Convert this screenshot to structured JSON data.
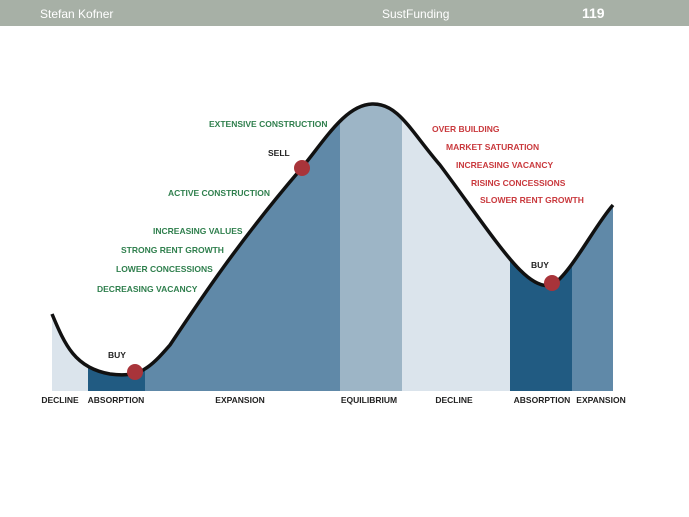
{
  "header": {
    "author": "Stefan Kofner",
    "center": "SustFunding",
    "page_number": "119"
  },
  "colors": {
    "header_bg": "#a7b0a6",
    "phase_light": "#dbe4ec",
    "phase_dark": "#215b82",
    "phase_mid": "#6089a8",
    "phase_equilibrium": "#9db5c6",
    "marker": "#a8343a",
    "green_text": "#2f7f4d",
    "red_text": "#c9393d"
  },
  "diagram": {
    "phases": [
      "DECLINE",
      "ABSORPTION",
      "EXPANSION",
      "EQUILIBRIUM",
      "DECLINE",
      "ABSORPTION",
      "EXPANSION"
    ],
    "markers": {
      "buy_left": "BUY",
      "sell": "SELL",
      "buy_right": "BUY"
    },
    "green_notes": [
      "EXTENSIVE CONSTRUCTION",
      "ACTIVE CONSTRUCTION",
      "INCREASING VALUES",
      "STRONG RENT GROWTH",
      "LOWER CONCESSIONS",
      "DECREASING VACANCY"
    ],
    "red_notes": [
      "OVER BUILDING",
      "MARKET SATURATION",
      "INCREASING VACANCY",
      "RISING CONCESSIONS",
      "SLOWER RENT GROWTH"
    ]
  }
}
